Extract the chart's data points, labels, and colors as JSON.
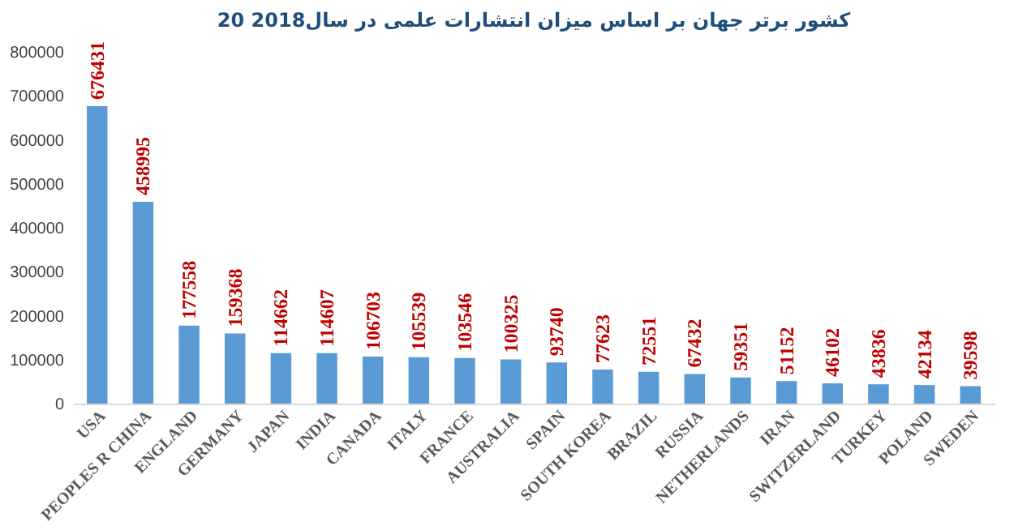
{
  "chart_data": {
    "type": "bar",
    "title": "20 کشور برتر جهان بر اساس میزان انتشارات علمی در سال2018",
    "categories": [
      "USA",
      "PEOPLES R CHINA",
      "ENGLAND",
      "GERMANY",
      "JAPAN",
      "INDIA",
      "CANADA",
      "ITALY",
      "FRANCE",
      "AUSTRALIA",
      "SPAIN",
      "SOUTH KOREA",
      "BRAZIL",
      "RUSSIA",
      "NETHERLANDS",
      "IRAN",
      "SWITZERLAND",
      "TURKEY",
      "POLAND",
      "SWEDEN"
    ],
    "values": [
      676431,
      458995,
      177558,
      159368,
      114662,
      114607,
      106703,
      105539,
      103546,
      100325,
      93740,
      77623,
      72551,
      67432,
      59351,
      51152,
      46102,
      43836,
      42134,
      39598
    ],
    "color": "#5b9bd5",
    "data_labels": true,
    "ylim": [
      0,
      800000
    ],
    "yticks": [
      0,
      100000,
      200000,
      300000,
      400000,
      500000,
      600000,
      700000,
      800000
    ],
    "grid": false
  }
}
